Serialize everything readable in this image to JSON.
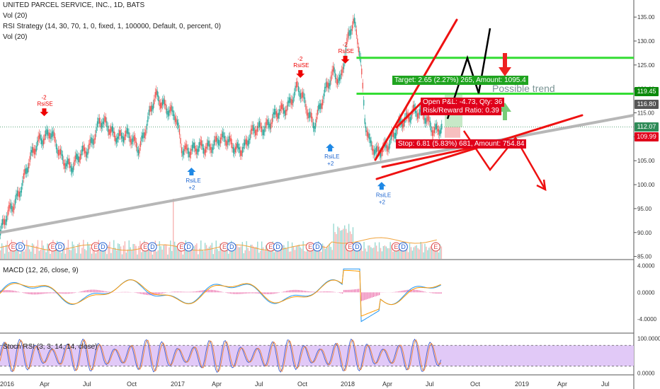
{
  "header": {
    "symbol_line": "UNITED PARCEL SERVICE, INC., 1D, BATS",
    "indicators": [
      "Vol (20)",
      "RSI Strategy (14, 30, 70, 1, 0, fixed, 1, 100000, Default, 0, percent, 0)",
      "Vol (20)"
    ]
  },
  "price_tags": [
    {
      "label": "119.45",
      "value": 119.45,
      "color": "#0b8a0b"
    },
    {
      "label": "116.80",
      "value": 116.8,
      "color": "#555555"
    },
    {
      "label": "112.07",
      "value": 112.07,
      "color": "#2e8b57"
    },
    {
      "label": "109.99",
      "value": 109.99,
      "color": "#e0001b"
    }
  ],
  "trade_boxes": {
    "target": "Target: 2.65 (2.27%) 265, Amount: 1095.4",
    "open_pl": "Open P&L: -4.73, Qty: 36",
    "risk_reward": "Risk/Reward Ratio: 0.39",
    "stop": "Stop: 6.81 (5.83%) 681, Amount: 754.84",
    "annotation": "Possible trend"
  },
  "signals": [
    {
      "text": "-2",
      "sub": "RsiSE",
      "type": "short",
      "date_index": 0.067,
      "price": 114
    },
    {
      "text": "-2",
      "sub": "RsiSE",
      "type": "short",
      "date_index": 0.455,
      "price": 122
    },
    {
      "text": "-2",
      "sub": "RsiSE",
      "type": "short",
      "date_index": 0.523,
      "price": 125
    },
    {
      "text": "+2",
      "sub": "RsiLE",
      "type": "long",
      "date_index": 0.29,
      "price": 104
    },
    {
      "text": "+2",
      "sub": "RsiLE",
      "type": "long",
      "date_index": 0.5,
      "price": 109
    },
    {
      "text": "+2",
      "sub": "RsiLE",
      "type": "long",
      "date_index": 0.578,
      "price": 101
    }
  ],
  "earnings_marker": "E",
  "dividend_marker": "D",
  "macd_label": "MACD (12, 26, close, 9)",
  "stoch_label": "Stoch RSI (3, 3, 14, 14, close)",
  "colors": {
    "up": "#26a69a",
    "down": "#ef5350",
    "trendline": "#b0b0b0",
    "green_line": "#33dd33",
    "red_line": "#ee1111",
    "black_line": "#000000",
    "macd": "#2196f3",
    "signal": "#ff9800",
    "stoch_fill": "#e1c9f7"
  },
  "chart_data": {
    "type": "line",
    "title": "UNITED PARCEL SERVICE, INC., 1D, BATS",
    "x_ticks": [
      "2016",
      "Apr",
      "Jul",
      "Oct",
      "2017",
      "Apr",
      "Jul",
      "Oct",
      "2018",
      "Apr",
      "Jul",
      "Oct",
      "2019",
      "Apr",
      "Jul"
    ],
    "price_axis": [
      "135.00",
      "130.00",
      "125.00",
      "120.00",
      "115.00",
      "110.00",
      "105.00",
      "100.00",
      "95.00",
      "90.00",
      "85.00"
    ],
    "price_axis_values": [
      135,
      130,
      125,
      120,
      115,
      110,
      105,
      100,
      95,
      90,
      85
    ],
    "ylim": [
      84.5,
      136.5
    ],
    "macd_axis": [
      "4.0000",
      "0.0000",
      "-4.0000"
    ],
    "macd_axis_values": [
      4,
      0,
      -4
    ],
    "macd_ylim": [
      -6,
      4.8
    ],
    "stoch_axis": [
      "100.0000",
      "0.0000"
    ],
    "stoch_axis_values": [
      100,
      0
    ],
    "stoch_ylim": [
      -5,
      113
    ],
    "stoch_band": [
      80,
      20
    ],
    "price_series": [
      [
        0.0,
        90
      ],
      [
        0.02,
        96
      ],
      [
        0.04,
        103
      ],
      [
        0.06,
        110
      ],
      [
        0.075,
        111
      ],
      [
        0.09,
        106
      ],
      [
        0.11,
        104
      ],
      [
        0.13,
        107
      ],
      [
        0.15,
        113
      ],
      [
        0.17,
        111
      ],
      [
        0.19,
        110
      ],
      [
        0.21,
        108
      ],
      [
        0.22,
        112
      ],
      [
        0.235,
        118
      ],
      [
        0.25,
        117
      ],
      [
        0.265,
        114
      ],
      [
        0.275,
        107
      ],
      [
        0.29,
        108
      ],
      [
        0.31,
        107
      ],
      [
        0.33,
        110
      ],
      [
        0.35,
        108
      ],
      [
        0.37,
        108
      ],
      [
        0.39,
        112
      ],
      [
        0.41,
        113
      ],
      [
        0.43,
        116
      ],
      [
        0.45,
        120
      ],
      [
        0.46,
        117
      ],
      [
        0.475,
        113
      ],
      [
        0.49,
        118
      ],
      [
        0.505,
        124
      ],
      [
        0.515,
        122
      ],
      [
        0.525,
        129
      ],
      [
        0.535,
        134
      ],
      [
        0.545,
        128
      ],
      [
        0.552,
        114
      ],
      [
        0.56,
        108
      ],
      [
        0.57,
        106
      ],
      [
        0.58,
        108
      ],
      [
        0.595,
        110
      ],
      [
        0.61,
        113
      ],
      [
        0.625,
        116
      ],
      [
        0.64,
        114
      ],
      [
        0.655,
        112
      ],
      [
        0.67,
        112
      ]
    ],
    "volume_bars": 320,
    "trendline": [
      [
        0.0,
        90
      ],
      [
        1.0,
        114.5
      ]
    ],
    "green_lines": [
      126.5,
      119.0
    ],
    "x_range": [
      0.0,
      0.96
    ]
  }
}
